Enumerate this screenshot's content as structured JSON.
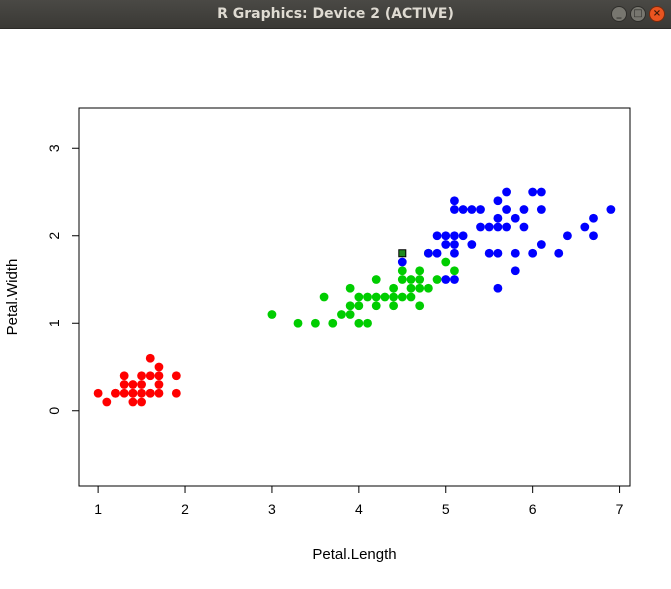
{
  "window": {
    "title": "R Graphics: Device 2 (ACTIVE)",
    "buttons": {
      "minimize_icon": "minimize-icon",
      "maximize_icon": "maximize-icon",
      "close_icon": "close-icon"
    },
    "colors": {
      "titlebar": "#3c3b37",
      "close": "#e95420"
    }
  },
  "chart_data": {
    "type": "scatter",
    "xlabel": "Petal.Length",
    "ylabel": "Petal.Width",
    "xlim": [
      0.78,
      7.12
    ],
    "ylim": [
      -0.86,
      3.46
    ],
    "xticks": [
      "1",
      "2",
      "3",
      "4",
      "5",
      "6",
      "7"
    ],
    "yticks": [
      "0",
      "1",
      "2",
      "3"
    ],
    "grid": false,
    "legend": "none",
    "series": [
      {
        "color": "#ff0000",
        "points": [
          [
            1.0,
            0.2
          ],
          [
            1.1,
            0.1
          ],
          [
            1.2,
            0.2
          ],
          [
            1.3,
            0.2
          ],
          [
            1.3,
            0.3
          ],
          [
            1.3,
            0.4
          ],
          [
            1.4,
            0.1
          ],
          [
            1.4,
            0.2
          ],
          [
            1.4,
            0.3
          ],
          [
            1.5,
            0.1
          ],
          [
            1.5,
            0.2
          ],
          [
            1.5,
            0.3
          ],
          [
            1.5,
            0.4
          ],
          [
            1.6,
            0.2
          ],
          [
            1.6,
            0.4
          ],
          [
            1.6,
            0.6
          ],
          [
            1.7,
            0.3
          ],
          [
            1.7,
            0.5
          ],
          [
            1.7,
            0.4
          ],
          [
            1.9,
            0.2
          ],
          [
            1.9,
            0.4
          ],
          [
            1.2,
            0.2
          ],
          [
            1.4,
            0.2
          ],
          [
            1.7,
            0.2
          ],
          [
            1.6,
            0.2
          ]
        ]
      },
      {
        "color": "#00cd00",
        "points": [
          [
            3.0,
            1.1
          ],
          [
            3.3,
            1.0
          ],
          [
            3.5,
            1.0
          ],
          [
            3.6,
            1.3
          ],
          [
            3.7,
            1.0
          ],
          [
            3.8,
            1.1
          ],
          [
            3.9,
            1.1
          ],
          [
            3.9,
            1.2
          ],
          [
            3.9,
            1.4
          ],
          [
            4.0,
            1.0
          ],
          [
            4.0,
            1.2
          ],
          [
            4.0,
            1.3
          ],
          [
            4.1,
            1.0
          ],
          [
            4.1,
            1.3
          ],
          [
            4.2,
            1.2
          ],
          [
            4.2,
            1.3
          ],
          [
            4.2,
            1.5
          ],
          [
            4.3,
            1.3
          ],
          [
            4.4,
            1.2
          ],
          [
            4.4,
            1.3
          ],
          [
            4.4,
            1.4
          ],
          [
            4.5,
            1.3
          ],
          [
            4.5,
            1.5
          ],
          [
            4.5,
            1.6
          ],
          [
            4.6,
            1.3
          ],
          [
            4.6,
            1.4
          ],
          [
            4.6,
            1.5
          ],
          [
            4.7,
            1.2
          ],
          [
            4.7,
            1.4
          ],
          [
            4.7,
            1.5
          ],
          [
            4.7,
            1.6
          ],
          [
            4.8,
            1.4
          ],
          [
            4.9,
            1.5
          ],
          [
            5.0,
            1.7
          ],
          [
            5.1,
            1.6
          ],
          [
            4.8,
            1.8
          ]
        ]
      },
      {
        "color": "#0000ff",
        "points": [
          [
            4.5,
            1.7
          ],
          [
            4.8,
            1.8
          ],
          [
            4.9,
            1.8
          ],
          [
            4.9,
            2.0
          ],
          [
            5.0,
            1.5
          ],
          [
            5.0,
            1.9
          ],
          [
            5.0,
            2.0
          ],
          [
            5.1,
            1.5
          ],
          [
            5.1,
            1.8
          ],
          [
            5.1,
            1.9
          ],
          [
            5.1,
            2.0
          ],
          [
            5.1,
            2.3
          ],
          [
            5.1,
            2.4
          ],
          [
            5.2,
            2.0
          ],
          [
            5.2,
            2.3
          ],
          [
            5.3,
            1.9
          ],
          [
            5.3,
            2.3
          ],
          [
            5.4,
            2.1
          ],
          [
            5.4,
            2.3
          ],
          [
            5.5,
            1.8
          ],
          [
            5.5,
            2.1
          ],
          [
            5.6,
            1.4
          ],
          [
            5.6,
            1.8
          ],
          [
            5.6,
            2.1
          ],
          [
            5.6,
            2.2
          ],
          [
            5.6,
            2.4
          ],
          [
            5.7,
            2.1
          ],
          [
            5.7,
            2.3
          ],
          [
            5.7,
            2.5
          ],
          [
            5.8,
            1.6
          ],
          [
            5.8,
            1.8
          ],
          [
            5.8,
            2.2
          ],
          [
            5.9,
            2.1
          ],
          [
            5.9,
            2.3
          ],
          [
            6.0,
            1.8
          ],
          [
            6.0,
            2.5
          ],
          [
            6.1,
            1.9
          ],
          [
            6.1,
            2.3
          ],
          [
            6.1,
            2.5
          ],
          [
            6.3,
            1.8
          ],
          [
            6.4,
            2.0
          ],
          [
            6.6,
            2.1
          ],
          [
            6.7,
            2.0
          ],
          [
            6.7,
            2.2
          ],
          [
            6.9,
            2.3
          ]
        ]
      }
    ],
    "highlight": {
      "x": 4.5,
      "y": 1.8,
      "fill": "#1f8a1f",
      "marker": "square"
    }
  }
}
